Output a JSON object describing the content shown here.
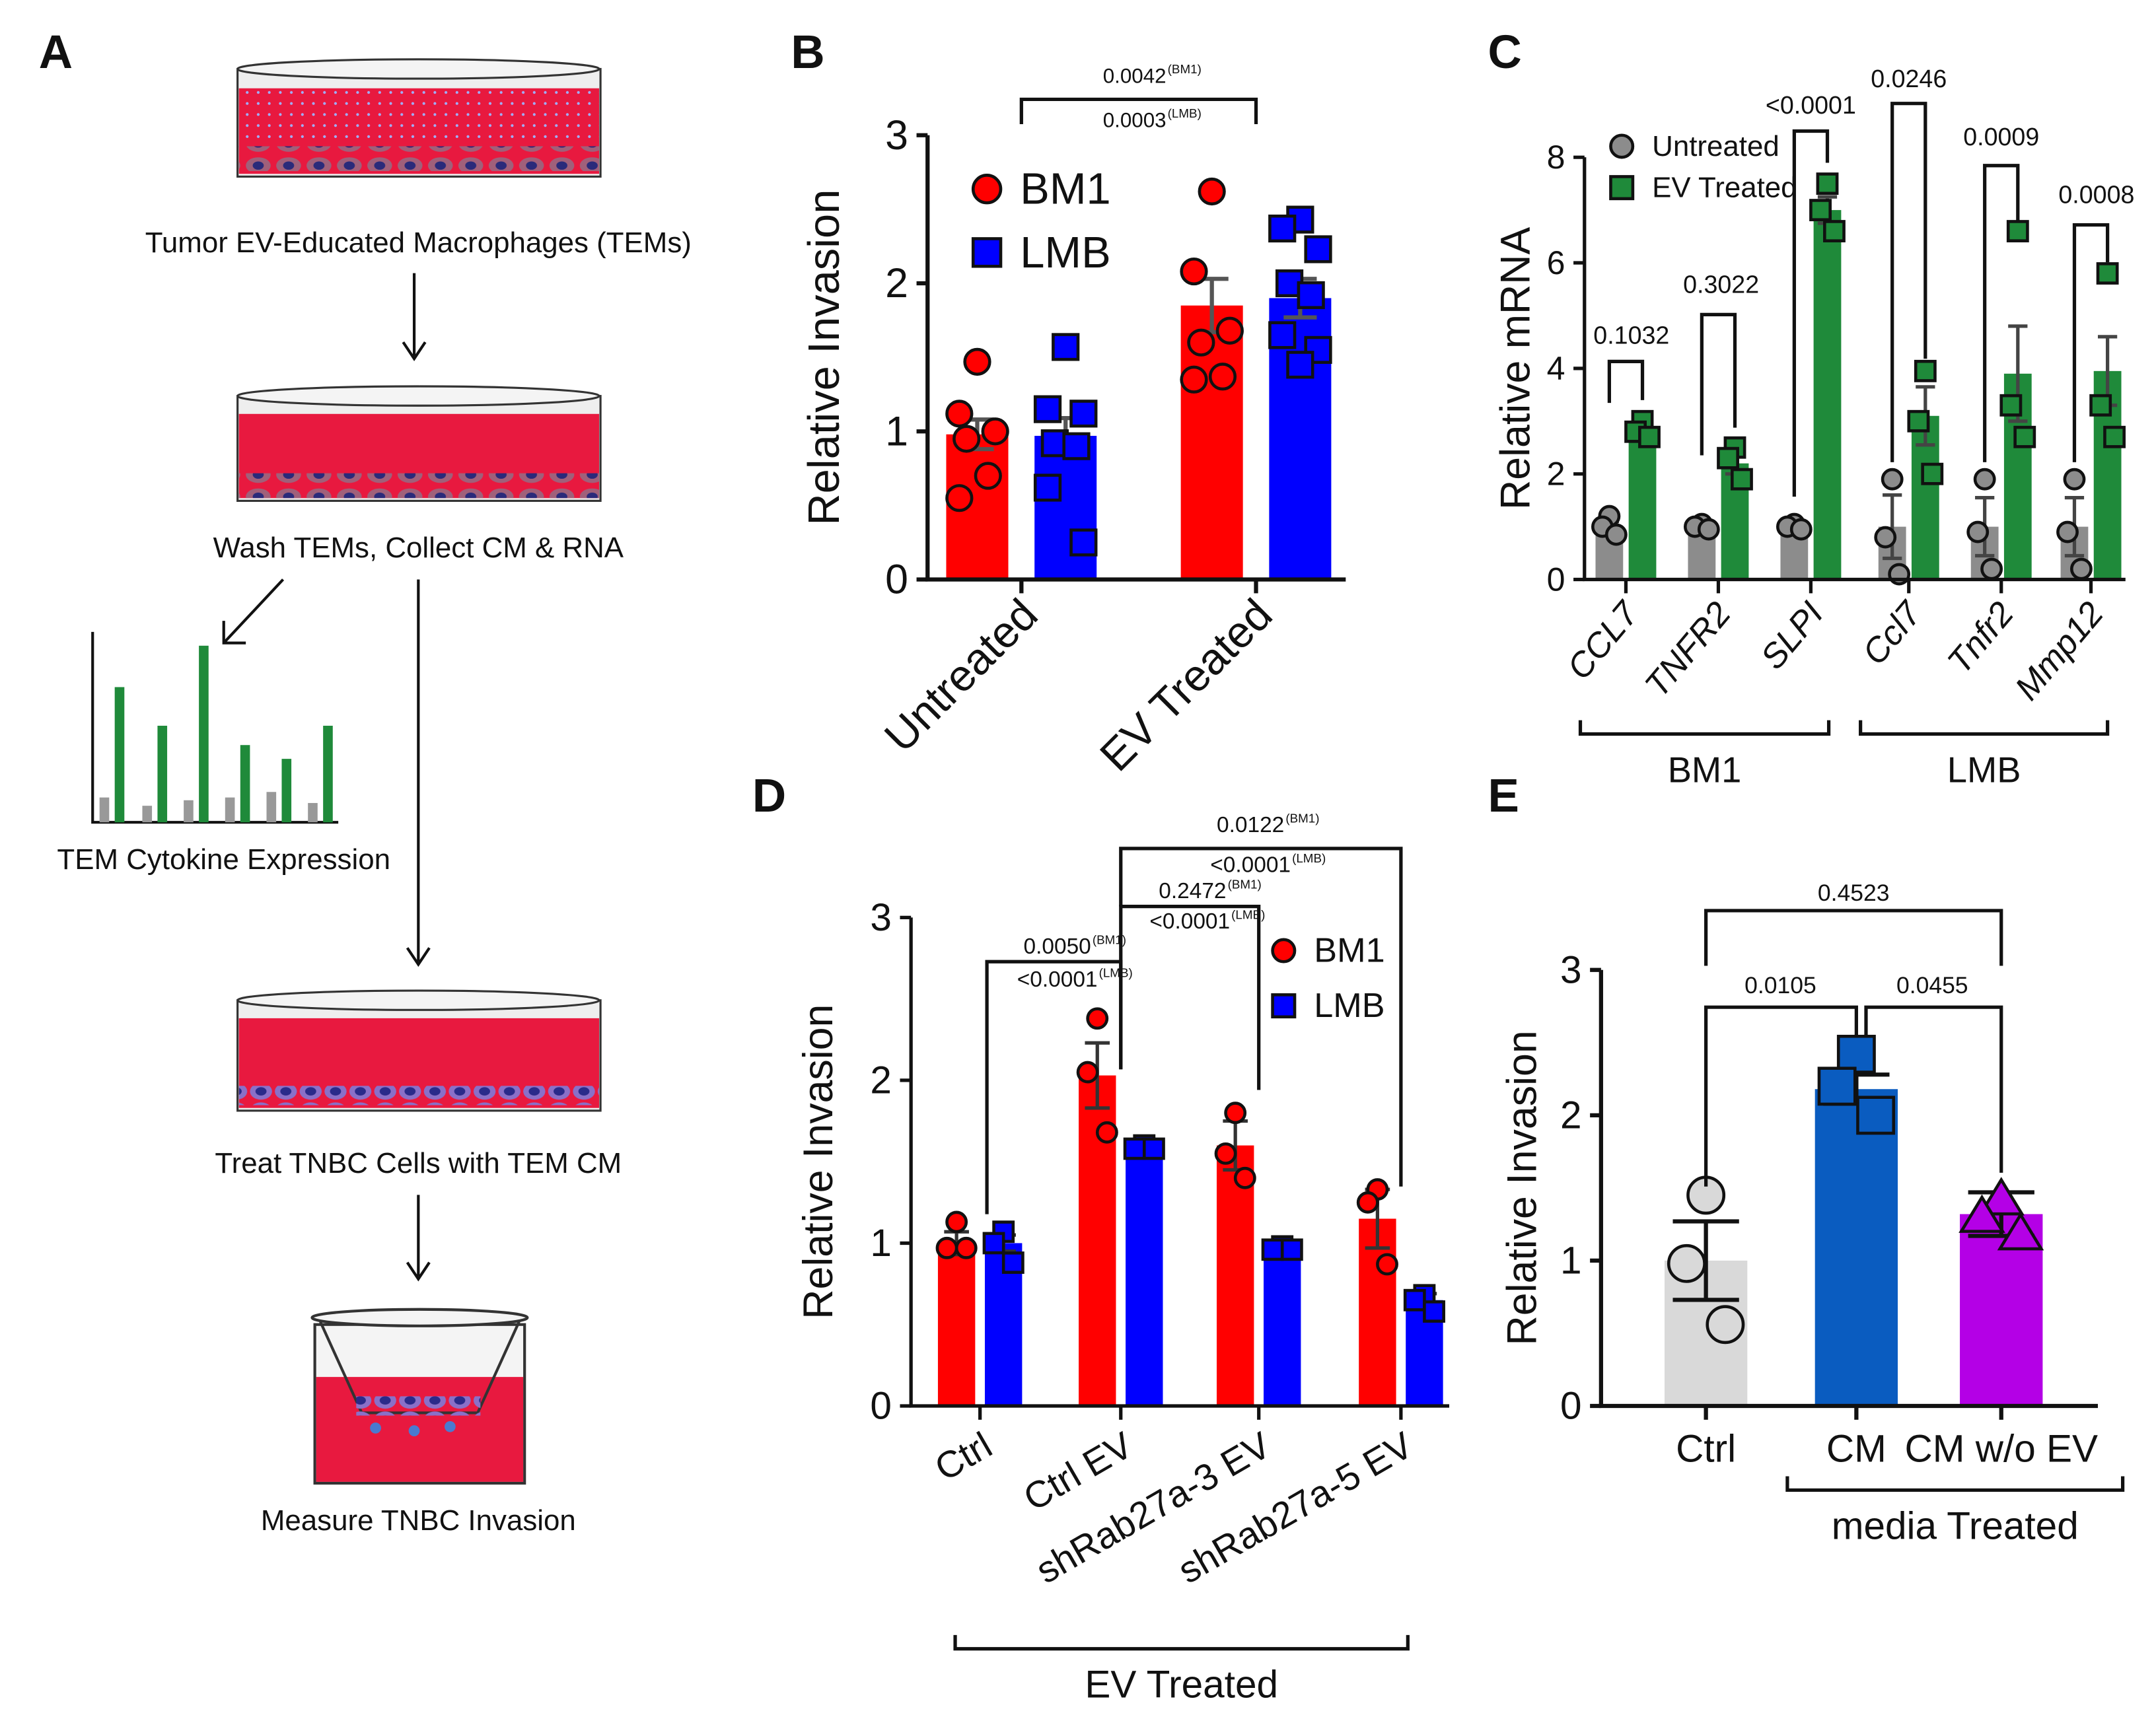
{
  "panel_a": {
    "letter": "A",
    "steps": [
      "Tumor EV-Educated Macrophages (TEMs)",
      "Wash TEMs, Collect CM & RNA",
      "TEM Cytokine Expression",
      "Treat TNBC Cells with TEM CM",
      "Measure TNBC Invasion"
    ]
  },
  "chart_data": [
    {
      "type": "bar",
      "letter": "B",
      "y_label": "Relative Invasion",
      "categories": [
        "Untreated",
        "EV Treated"
      ],
      "series": [
        {
          "name": "BM1",
          "color": "#ff0000",
          "marker": "circle",
          "values": [
            0.98,
            1.85
          ],
          "errors": [
            0.1,
            0.18
          ],
          "points": [
            [
              1.47,
              1.12,
              1.0,
              0.95,
              0.7,
              0.55
            ],
            [
              2.62,
              2.08,
              1.68,
              1.6,
              1.37,
              1.35
            ]
          ]
        },
        {
          "name": "LMB",
          "color": "#0000ff",
          "marker": "square",
          "values": [
            0.97,
            1.9
          ],
          "errors": [
            0.12,
            0.13
          ],
          "points": [
            [
              1.57,
              1.15,
              1.12,
              0.92,
              0.9,
              0.62,
              0.25
            ],
            [
              2.43,
              2.37,
              2.23,
              2.0,
              1.92,
              1.65,
              1.55,
              1.45
            ]
          ]
        }
      ],
      "ylim": [
        0,
        3
      ],
      "yticks": [
        0,
        1,
        2,
        3
      ],
      "legend": "upper left",
      "annotations": [
        {
          "text": "0.0042",
          "note": "(BM1)"
        },
        {
          "text": "0.0003",
          "note": "(LMB)"
        }
      ]
    },
    {
      "type": "bar",
      "letter": "C",
      "y_label": "Relative mRNA",
      "categories": [
        "CCL7",
        "TNFR2",
        "SLPI",
        "Ccl7",
        "Tnfr2",
        "Mmp12"
      ],
      "groups": [
        "BM1",
        "LMB"
      ],
      "series": [
        {
          "name": "Untreated",
          "color": "#8c8c8c",
          "marker": "circle",
          "values": [
            1,
            1,
            1,
            1,
            1,
            1
          ],
          "errors": [
            0.1,
            0.03,
            0.03,
            0.6,
            0.55,
            0.55
          ],
          "points": [
            [
              1.2,
              1.0,
              0.85
            ],
            [
              1.05,
              1.0,
              0.95
            ],
            [
              1.05,
              1.0,
              0.95
            ],
            [
              1.9,
              0.8,
              0.1
            ],
            [
              1.9,
              0.9,
              0.2
            ],
            [
              1.9,
              0.9,
              0.2
            ]
          ]
        },
        {
          "name": "EV Treated",
          "color": "#1f8a3a",
          "marker": "square",
          "values": [
            2.9,
            2.2,
            7.0,
            3.1,
            3.9,
            3.95
          ],
          "errors": [
            0.1,
            0.2,
            0.25,
            0.55,
            0.9,
            0.65
          ],
          "points": [
            [
              3.0,
              2.8,
              2.7
            ],
            [
              2.5,
              2.3,
              1.9
            ],
            [
              7.5,
              7.0,
              6.6
            ],
            [
              3.95,
              3.0,
              2.0
            ],
            [
              6.6,
              3.3,
              2.7
            ],
            [
              5.8,
              3.3,
              2.7
            ]
          ]
        }
      ],
      "ylim": [
        0,
        8
      ],
      "yticks": [
        0,
        2,
        4,
        6,
        8
      ],
      "legend": "upper left",
      "annotations": [
        "0.1032",
        "0.3022",
        "<0.0001",
        "0.0246",
        "0.0009",
        "0.0008"
      ]
    },
    {
      "type": "bar",
      "letter": "D",
      "y_label": "Relative Invasion",
      "categories": [
        "Ctrl",
        "Ctrl EV",
        "shRab27a-3 EV",
        "shRab27a-5 EV"
      ],
      "groups": [
        "EV Treated"
      ],
      "series": [
        {
          "name": "BM1",
          "color": "#ff0000",
          "marker": "circle",
          "values": [
            1.0,
            2.03,
            1.6,
            1.15
          ],
          "errors": [
            0.07,
            0.2,
            0.15,
            0.18
          ],
          "points": [
            [
              1.13,
              0.97,
              0.97
            ],
            [
              2.38,
              2.05,
              1.68
            ],
            [
              1.8,
              1.55,
              1.4
            ],
            [
              1.33,
              1.25,
              0.87
            ]
          ]
        },
        {
          "name": "LMB",
          "color": "#0000ff",
          "marker": "square",
          "values": [
            1.0,
            1.6,
            0.97,
            0.65
          ],
          "errors": [
            0.05,
            0.02,
            0.02,
            0.04
          ],
          "points": [
            [
              1.07,
              1.0,
              0.88
            ],
            [
              1.6,
              1.58,
              1.58
            ],
            [
              0.98,
              0.96,
              0.96
            ],
            [
              0.68,
              0.65,
              0.58
            ]
          ]
        }
      ],
      "ylim": [
        0,
        3
      ],
      "yticks": [
        0,
        1,
        2,
        3
      ],
      "legend": "upper right",
      "annotations": [
        {
          "text": "0.0050",
          "note": "(BM1)"
        },
        {
          "text": "<0.0001",
          "note": "(LMB)"
        },
        {
          "text": "0.2472",
          "note": "(BM1)"
        },
        {
          "text": "<0.0001",
          "note": "(LMB)"
        },
        {
          "text": "0.0122",
          "note": "(BM1)"
        },
        {
          "text": "<0.0001",
          "note": "(LMB)"
        }
      ]
    },
    {
      "type": "bar",
      "letter": "E",
      "y_label": "Relative Invasion",
      "categories": [
        "Ctrl",
        "CM",
        "CM w/o EV"
      ],
      "groups": [
        "media Treated"
      ],
      "series": [
        {
          "colors": [
            "#d9d9d9",
            "#0a5cc0",
            "#b400e6"
          ],
          "markers": [
            "circle",
            "square",
            "triangle"
          ],
          "values": [
            1.0,
            2.18,
            1.32
          ],
          "errors": [
            0.27,
            0.1,
            0.15
          ],
          "points": [
            [
              1.45,
              0.98,
              0.56
            ],
            [
              2.42,
              2.2,
              2.0
            ],
            [
              1.42,
              1.3,
              1.18
            ]
          ]
        }
      ],
      "ylim": [
        0,
        3
      ],
      "yticks": [
        0,
        1,
        2,
        3
      ],
      "annotations": [
        "0.0105",
        "0.0455",
        "0.4523"
      ]
    }
  ]
}
